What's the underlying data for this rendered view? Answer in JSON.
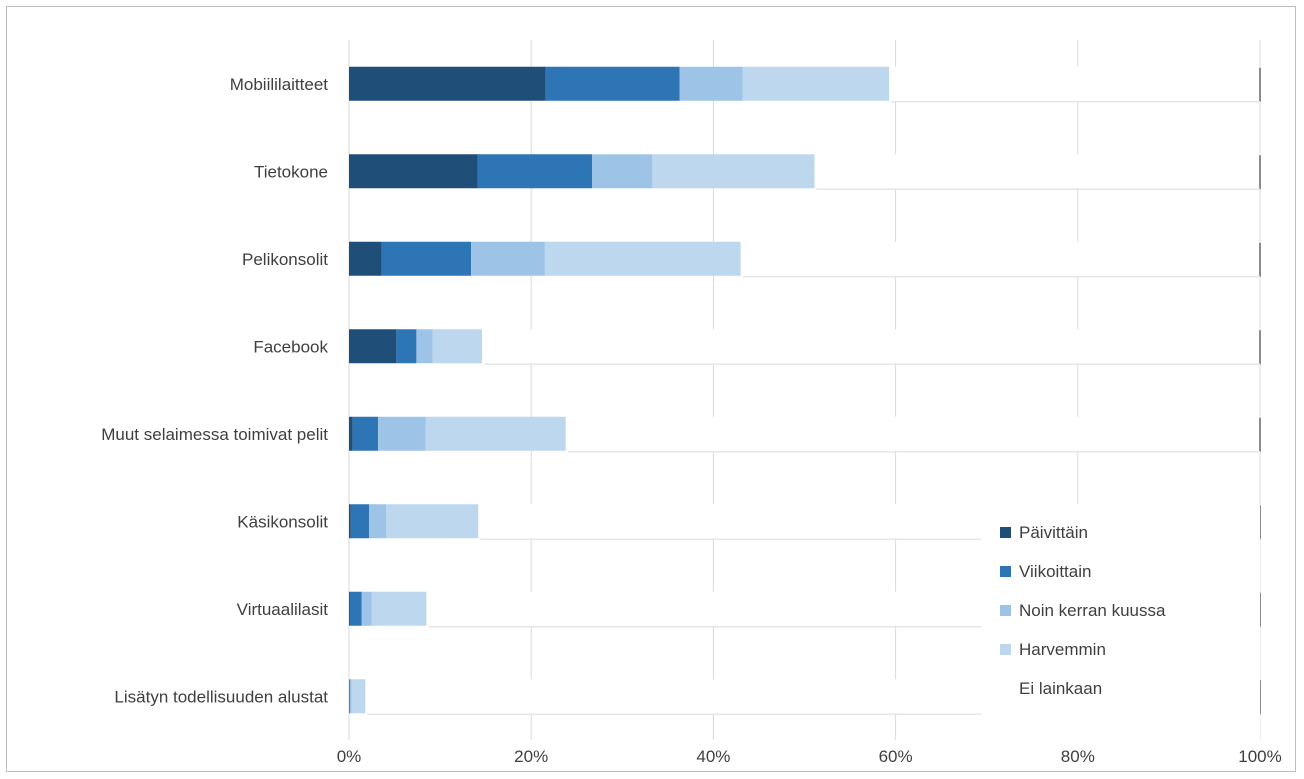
{
  "chart_data": {
    "type": "bar",
    "orientation": "horizontal",
    "stacked": true,
    "percent_stacked": true,
    "title": "",
    "xlabel": "",
    "ylabel": "",
    "xlim": [
      0,
      100
    ],
    "x_ticks": [
      "0%",
      "20%",
      "40%",
      "60%",
      "80%",
      "100%"
    ],
    "grid": true,
    "legend_position": "bottom-right",
    "categories": [
      "Mobiililaitteet",
      "Tietokone",
      "Pelikonsolit",
      "Facebook",
      "Muut selaimessa toimivat pelit",
      "Käsikonsolit",
      "Virtuaalilasit",
      "Lisätyn todellisuuden alustat"
    ],
    "series": [
      {
        "name": "Päivittäin",
        "color": "#1f4e79",
        "values": [
          21.6,
          14.1,
          3.6,
          5.2,
          0.4,
          0.2,
          0.1,
          0.0
        ]
      },
      {
        "name": "Viikoittain",
        "color": "#2e75b6",
        "values": [
          14.7,
          12.6,
          9.8,
          2.2,
          2.8,
          2.0,
          1.3,
          0.1
        ]
      },
      {
        "name": "Noin kerran kuussa",
        "color": "#9dc3e6",
        "values": [
          6.9,
          6.6,
          8.1,
          1.8,
          5.2,
          1.9,
          1.1,
          0.2
        ]
      },
      {
        "name": "Harvemmin",
        "color": "#bdd7ee",
        "values": [
          16.1,
          17.8,
          21.5,
          5.4,
          15.4,
          10.1,
          6.0,
          1.5
        ]
      },
      {
        "name": "Ei lainkaan",
        "color": "#ffffff",
        "values": [
          40.7,
          48.9,
          57.0,
          85.4,
          76.2,
          85.8,
          91.5,
          98.2
        ]
      }
    ]
  }
}
